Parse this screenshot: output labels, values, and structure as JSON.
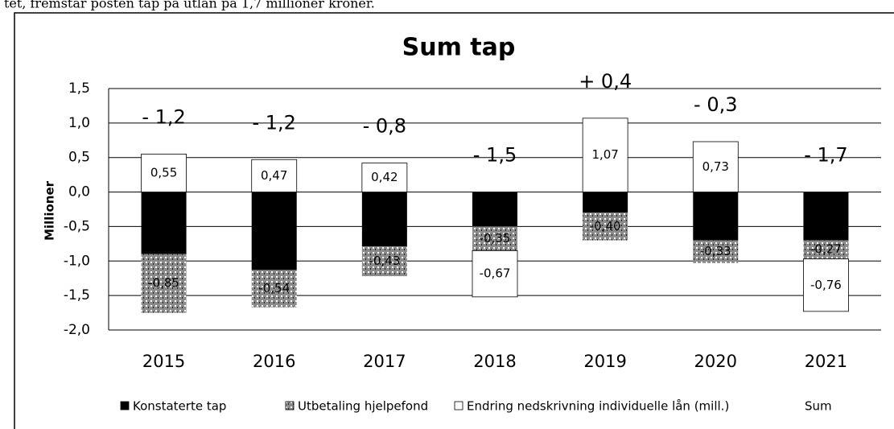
{
  "header_text": "tet, fremstår posten tap på utlån på 1,7 millioner kroner.",
  "chart_data": {
    "type": "stacked_bar",
    "title": "Sum tap",
    "y_axis_label": "Millioner",
    "categories": [
      "2015",
      "2016",
      "2017",
      "2018",
      "2019",
      "2020",
      "2021"
    ],
    "series": [
      {
        "name": "Konstaterte tap",
        "color": "#000000",
        "values": [
          -0.9,
          -1.13,
          -0.79,
          -0.5,
          -0.3,
          -0.7,
          -0.7
        ]
      },
      {
        "name": "Utbetaling hjelpefond",
        "color": "#9a9a9a",
        "values": [
          -0.85,
          -0.54,
          -0.43,
          -0.35,
          -0.4,
          -0.33,
          -0.27
        ],
        "value_labels": [
          "-0,85",
          "-0,54",
          "-0,43",
          "-0,35",
          "-0,40",
          "-0,33",
          "-0,27"
        ]
      },
      {
        "name": "Endring nedskrivning individuelle lån (mill.)",
        "color": "#ffffff",
        "values": [
          0.55,
          0.47,
          0.42,
          -0.67,
          1.07,
          0.73,
          -0.76
        ],
        "value_labels": [
          "0,55",
          "0,47",
          "0,42",
          "-0,67",
          "1,07",
          "0,73",
          "-0,76"
        ]
      },
      {
        "name": "Sum",
        "values": [
          -1.2,
          -1.2,
          -0.8,
          -1.5,
          0.4,
          -0.3,
          -1.7
        ],
        "value_labels": [
          "- 1,2",
          "- 1,2",
          "- 0,8",
          "- 1,5",
          "+ 0,4",
          "- 0,3",
          "- 1,7"
        ]
      }
    ],
    "ylim": [
      -2.0,
      1.5
    ],
    "yticks": [
      {
        "value": 1.5,
        "label": "1,5"
      },
      {
        "value": 1.0,
        "label": "1,0"
      },
      {
        "value": 0.5,
        "label": "0,5"
      },
      {
        "value": 0.0,
        "label": "0,0"
      },
      {
        "value": -0.5,
        "label": "-0,5"
      },
      {
        "value": -1.0,
        "label": "-1,0"
      },
      {
        "value": -1.5,
        "label": "-1,5"
      },
      {
        "value": -2.0,
        "label": "-2,0"
      }
    ],
    "grid": true
  }
}
